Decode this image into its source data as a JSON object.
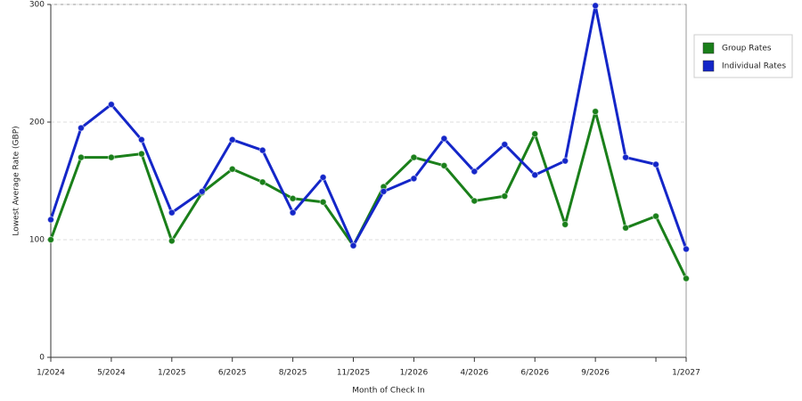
{
  "chart_data": {
    "type": "line",
    "x_label": "Month of Check In",
    "y_label": "Lowest Average Rate (GBP)",
    "categories": [
      "1/2024",
      null,
      "5/2024",
      null,
      "1/2025",
      null,
      "6/2025",
      null,
      "8/2025",
      null,
      "11/2025",
      null,
      "1/2026",
      null,
      "4/2026",
      null,
      "6/2026",
      null,
      "9/2026",
      null,
      null,
      "1/2027"
    ],
    "series": [
      {
        "name": "Group Rates",
        "color": "#1a7f1a",
        "values": [
          100,
          170,
          170,
          173,
          99,
          140,
          160,
          149,
          135,
          132,
          95,
          145,
          170,
          163,
          133,
          137,
          190,
          113,
          209,
          110,
          120,
          67
        ]
      },
      {
        "name": "Individual Rates",
        "color": "#1426c8",
        "values": [
          117,
          195,
          215,
          185,
          123,
          141,
          185,
          176,
          123,
          153,
          95,
          141,
          152,
          186,
          158,
          181,
          155,
          167,
          299,
          170,
          164,
          92
        ]
      }
    ],
    "ylim": [
      0,
      300
    ],
    "yticks": [
      0,
      100,
      200,
      300
    ],
    "grid": true,
    "legend": "right"
  }
}
